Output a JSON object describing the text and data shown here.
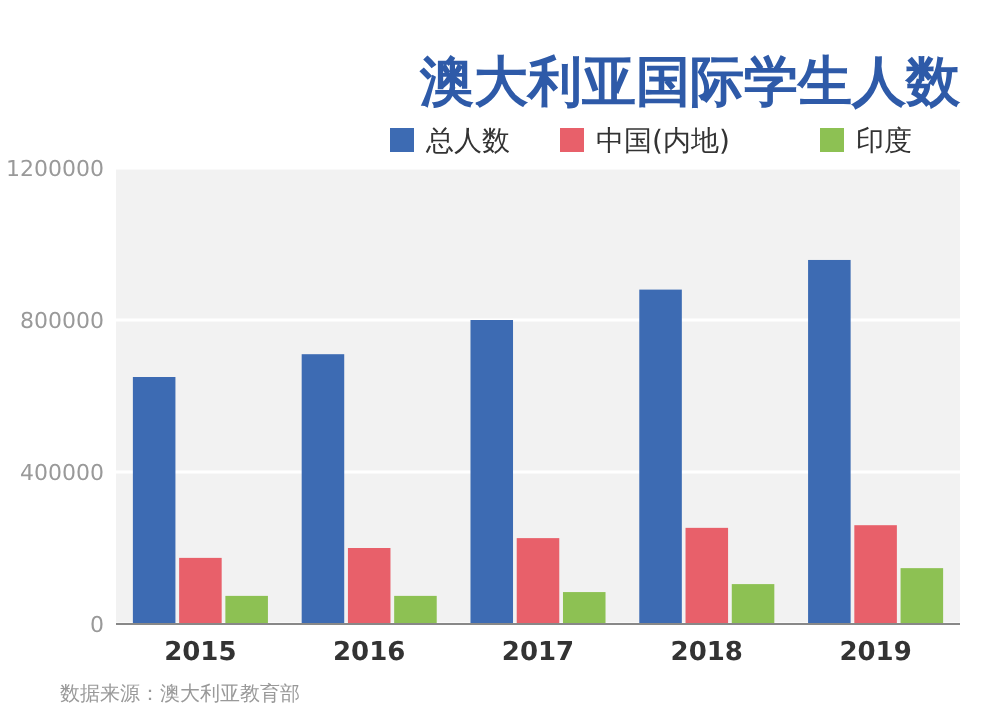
{
  "chart_data": {
    "type": "bar",
    "title": "澳大利亚国际学生人数",
    "categories": [
      "2015",
      "2016",
      "2017",
      "2018",
      "2019"
    ],
    "series": [
      {
        "name": "总人数",
        "color": "#3d6bb3",
        "values": [
          650000,
          710000,
          800000,
          880000,
          958000
        ]
      },
      {
        "name": "中国(内地)",
        "color": "#e8606a",
        "values": [
          174000,
          200000,
          226000,
          253000,
          260000
        ]
      },
      {
        "name": "印度",
        "color": "#8dc153",
        "values": [
          74000,
          74000,
          84000,
          105000,
          147000
        ]
      }
    ],
    "ylim": [
      0,
      1200000
    ],
    "yticks": [
      0,
      400000,
      800000,
      1200000
    ],
    "grid": "y",
    "legend": "top right",
    "annotations": [
      "数据来源：澳大利亚教育部"
    ]
  }
}
